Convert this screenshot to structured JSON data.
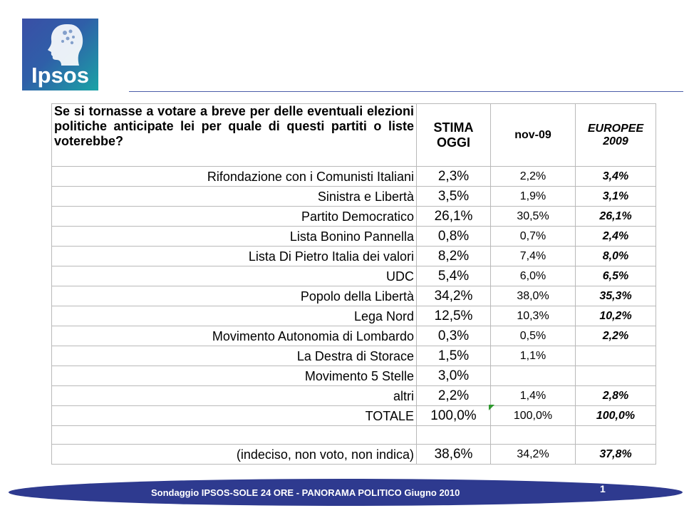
{
  "logo": {
    "text": "Ipsos"
  },
  "question": "Se si tornasse a votare a breve per delle eventuali elezioni politiche anticipate lei per quale di questi partiti o liste voterebbe?",
  "headers": {
    "stima_line1": "STIMA",
    "stima_line2": "OGGI",
    "nov": "nov-09",
    "eu_line1": "EUROPEE",
    "eu_line2": "2009"
  },
  "rows": [
    {
      "party": "Rifondazione con i Comunisti Italiani",
      "stima": "2,3%",
      "nov": "2,2%",
      "eu": "3,4%"
    },
    {
      "party": "Sinistra e Libertà",
      "stima": "3,5%",
      "nov": "1,9%",
      "eu": "3,1%"
    },
    {
      "party": "Partito Democratico",
      "stima": "26,1%",
      "nov": "30,5%",
      "eu": "26,1%"
    },
    {
      "party": "Lista Bonino Pannella",
      "stima": "0,8%",
      "nov": "0,7%",
      "eu": "2,4%"
    },
    {
      "party": "Lista Di Pietro Italia dei valori",
      "stima": "8,2%",
      "nov": "7,4%",
      "eu": "8,0%"
    },
    {
      "party": "UDC",
      "stima": "5,4%",
      "nov": "6,0%",
      "eu": "6,5%"
    },
    {
      "party": "Popolo della Libertà",
      "stima": "34,2%",
      "nov": "38,0%",
      "eu": "35,3%"
    },
    {
      "party": "Lega Nord",
      "stima": "12,5%",
      "nov": "10,3%",
      "eu": "10,2%"
    },
    {
      "party": "Movimento Autonomia di Lombardo",
      "stima": "0,3%",
      "nov": "0,5%",
      "eu": "2,2%"
    },
    {
      "party": "La Destra di Storace",
      "stima": "1,5%",
      "nov": "1,1%",
      "eu": ""
    },
    {
      "party": "Movimento 5 Stelle",
      "stima": "3,0%",
      "nov": "",
      "eu": ""
    },
    {
      "party": "altri",
      "stima": "2,2%",
      "nov": "1,4%",
      "eu": "2,8%"
    },
    {
      "party": "TOTALE",
      "stima": "100,0%",
      "nov": "100,0%",
      "eu": "100,0%"
    }
  ],
  "undecided": {
    "party": "(indeciso, non voto, non indica)",
    "stima": "38,6%",
    "nov": "34,2%",
    "eu": "37,8%"
  },
  "footer": {
    "text": "Sondaggio IPSOS-SOLE 24 ORE - PANORAMA POLITICO Giugno  2010",
    "page": "1"
  },
  "colors": {
    "footer_bar": "#2e3a8f",
    "logo_left": "#3a4fa6",
    "logo_right": "#1aa3a6"
  }
}
